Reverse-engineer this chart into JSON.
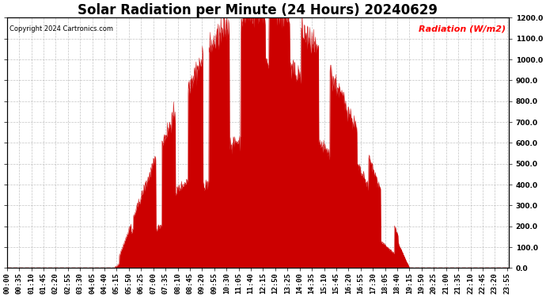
{
  "title": "Solar Radiation per Minute (24 Hours) 20240629",
  "copyright": "Copyright 2024 Cartronics.com",
  "legend_label": "Radiation (W/m2)",
  "ylim": [
    0.0,
    1200.0
  ],
  "yticks": [
    0.0,
    100.0,
    200.0,
    300.0,
    400.0,
    500.0,
    600.0,
    700.0,
    800.0,
    900.0,
    1000.0,
    1100.0,
    1200.0
  ],
  "fill_color": "#cc0000",
  "background_color": "#ffffff",
  "grid_color": "#aaaaaa",
  "zeroline_color": "#cc0000",
  "title_fontsize": 12,
  "tick_fontsize": 6.5,
  "minutes_per_day": 1440,
  "sunrise_minute": 310,
  "sunset_minute": 1155,
  "peak_minute": 755,
  "peak_value": 1240.0,
  "tick_interval_minutes": 35
}
